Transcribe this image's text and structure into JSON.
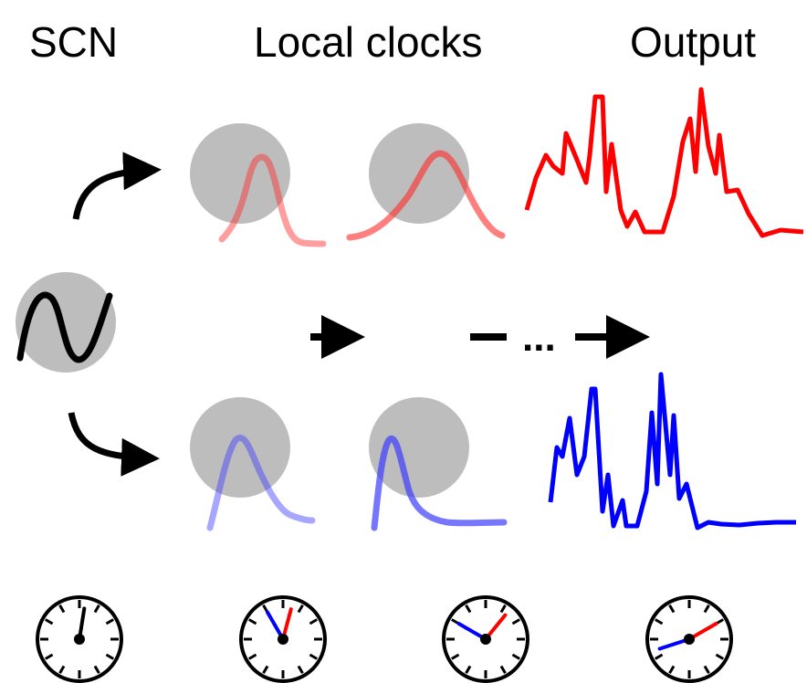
{
  "headings": {
    "scn": "SCN",
    "local_clocks": "Local clocks",
    "output": "Output"
  },
  "ellipsis": "...",
  "colors": {
    "node_fill": "#bdbdbd",
    "scn_wave": "#000000",
    "red_phase": "#ff0000",
    "blue_phase": "#0000ff",
    "arrow": "#000000"
  },
  "clock_faces": [
    {
      "label_ref": "scn",
      "hands": [
        {
          "color": "black",
          "hour": 0.3
        }
      ]
    },
    {
      "label_ref": "local-clock-1",
      "hands": [
        {
          "color": "red",
          "hour": 0.5
        },
        {
          "color": "blue",
          "hour": 11.0
        }
      ]
    },
    {
      "label_ref": "local-clock-2",
      "hands": [
        {
          "color": "red",
          "hour": 1.3
        },
        {
          "color": "blue",
          "hour": 10.0
        }
      ]
    },
    {
      "label_ref": "output",
      "hands": [
        {
          "color": "red",
          "hour": 2.0
        },
        {
          "color": "blue",
          "hour": 8.4
        }
      ]
    }
  ]
}
